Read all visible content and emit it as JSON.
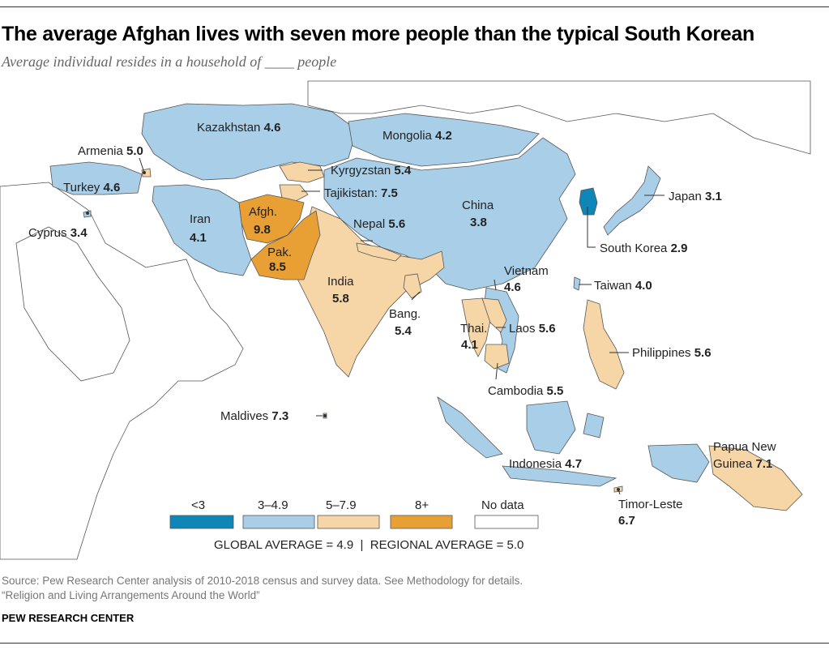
{
  "title": "The average Afghan lives with seven more people than the typical South Korean",
  "subtitle": "Average individual resides in a household of ____ people",
  "colors": {
    "lt3": "#0e87b8",
    "c3_4_9": "#a9cfe8",
    "c5_7_9": "#f6d6a6",
    "c8plus": "#e8a035",
    "nodata": "#ffffff",
    "outline": "#555555"
  },
  "countries": {
    "kazakhstan": {
      "name": "Kazakhstan",
      "value": "4.6"
    },
    "mongolia": {
      "name": "Mongolia",
      "value": "4.2"
    },
    "armenia": {
      "name": "Armenia",
      "value": "5.0"
    },
    "kyrgyzstan": {
      "name": "Kyrgyzstan",
      "value": "5.4"
    },
    "turkey": {
      "name": "Turkey",
      "value": "4.6"
    },
    "tajikistan": {
      "name": "Tajikistan:",
      "value": "7.5"
    },
    "japan": {
      "name": "Japan",
      "value": "3.1"
    },
    "china": {
      "name": "China",
      "value": "3.8"
    },
    "iran": {
      "name": "Iran",
      "value": "4.1"
    },
    "afghanistan": {
      "name": "Afgh.",
      "value": "9.8"
    },
    "nepal": {
      "name": "Nepal",
      "value": "5.6"
    },
    "cyprus": {
      "name": "Cyprus",
      "value": "3.4"
    },
    "south_korea": {
      "name": "South Korea",
      "value": "2.9"
    },
    "pakistan": {
      "name": "Pak.",
      "value": "8.5"
    },
    "vietnam": {
      "name": "Vietnam",
      "value": "4.6"
    },
    "india": {
      "name": "India",
      "value": "5.8"
    },
    "taiwan": {
      "name": "Taiwan",
      "value": "4.0"
    },
    "bangladesh": {
      "name": "Bang.",
      "value": "5.4"
    },
    "laos": {
      "name": "Laos",
      "value": "5.6"
    },
    "thailand": {
      "name": "Thai.",
      "value": "4.1"
    },
    "philippines": {
      "name": "Philippines",
      "value": "5.6"
    },
    "cambodia": {
      "name": "Cambodia",
      "value": "5.5"
    },
    "maldives": {
      "name": "Maldives",
      "value": "7.3"
    },
    "papua_new_guinea": {
      "name_line1": "Papua New",
      "name_line2": "Guinea",
      "value": "7.1"
    },
    "indonesia": {
      "name": "Indonesia",
      "value": "4.7"
    },
    "timor_leste": {
      "name": "Timor-Leste",
      "value": "6.7"
    }
  },
  "legend": {
    "items": [
      {
        "label": "<3",
        "color": "#0e87b8"
      },
      {
        "label": "3–4.9",
        "color": "#a9cfe8"
      },
      {
        "label": "5–7.9",
        "color": "#f6d6a6"
      },
      {
        "label": "8+",
        "color": "#e8a035"
      },
      {
        "label": "No data",
        "color": "#ffffff"
      }
    ],
    "averages": "GLOBAL AVERAGE = 4.9  |  REGIONAL AVERAGE = 5.0"
  },
  "source": "Source: Pew Research Center analysis of 2010-2018 census and survey data. See Methodology for details.",
  "report": "“Religion and Living Arrangements Around the World”",
  "brand": "PEW RESEARCH CENTER"
}
